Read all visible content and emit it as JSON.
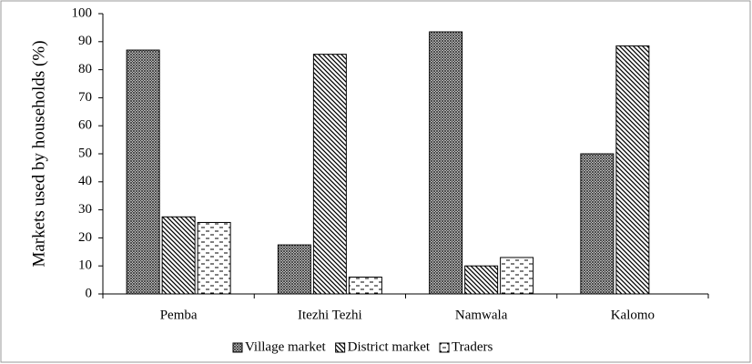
{
  "chart_data": {
    "type": "bar",
    "y_label": "Markets used by households (%)",
    "categories": [
      "Pemba",
      "Itezhi Tezhi",
      "Namwala",
      "Kalomo"
    ],
    "series": [
      {
        "name": "Village market",
        "color": "#000000",
        "pattern": "crosshatch",
        "values": [
          87,
          17.5,
          93.5,
          50
        ]
      },
      {
        "name": "District market",
        "color": "#000000",
        "pattern": "diagonal",
        "values": [
          27.5,
          85.5,
          10,
          88.5
        ]
      },
      {
        "name": "Traders",
        "color": "#000000",
        "pattern": "dashes",
        "values": [
          25.5,
          6,
          13,
          null
        ]
      }
    ],
    "ylim": [
      0,
      100
    ],
    "yticks": [
      0,
      10,
      20,
      30,
      40,
      50,
      60,
      70,
      80,
      90,
      100
    ],
    "legend": "bottom"
  }
}
